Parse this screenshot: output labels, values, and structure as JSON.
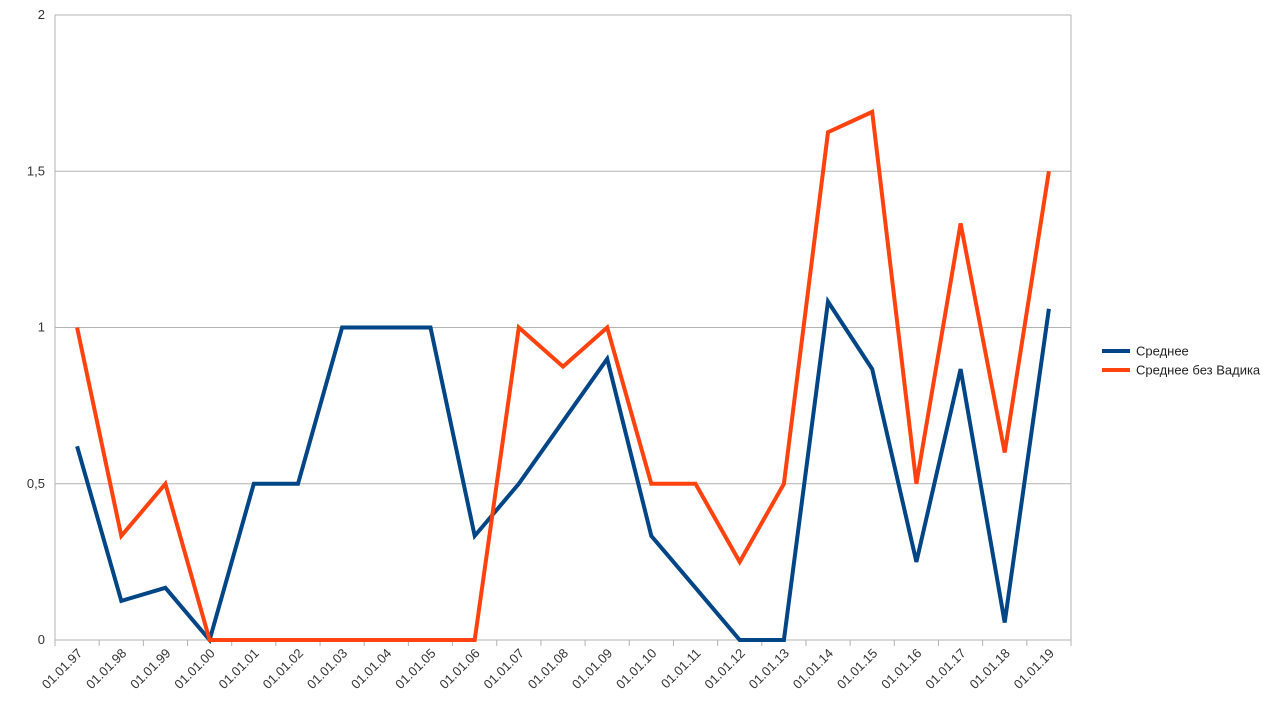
{
  "chart_data": {
    "type": "line",
    "categories": [
      "01.01.97",
      "01.01.98",
      "01.01.99",
      "01.01.00",
      "01.01.01",
      "01.01.02",
      "01.01.03",
      "01.01.04",
      "01.01.05",
      "01.01.06",
      "01.01.07",
      "01.01.08",
      "01.01.09",
      "01.01.10",
      "01.01.11",
      "01.01.12",
      "01.01.13",
      "01.01.14",
      "01.01.15",
      "01.01.16",
      "01.01.17",
      "01.01.18",
      "01.01.19"
    ],
    "series": [
      {
        "name": "Среднее",
        "color": "#004586",
        "values": [
          0.62,
          0.125,
          0.167,
          0,
          0.5,
          0.5,
          1,
          1,
          1,
          0.333,
          0.5,
          0.7,
          0.9,
          0.333,
          0.167,
          0,
          0,
          1.083,
          0.867,
          0.25,
          0.867,
          0.056,
          1.06
        ]
      },
      {
        "name": "Среднее без Вадика",
        "color": "#ff420e",
        "values": [
          1,
          0.333,
          0.5,
          0,
          0,
          0,
          0,
          0,
          0,
          0,
          1,
          0.875,
          1,
          0.5,
          0.5,
          0.25,
          0.5,
          1.625,
          1.69,
          0.5,
          1.333,
          0.6,
          1.5
        ]
      }
    ],
    "yticks": [
      "0",
      "0,5",
      "1",
      "1,5",
      "2"
    ],
    "ylim": [
      0,
      2
    ],
    "grid": true,
    "legend": "right",
    "title": "",
    "xlabel": "",
    "ylabel": ""
  }
}
